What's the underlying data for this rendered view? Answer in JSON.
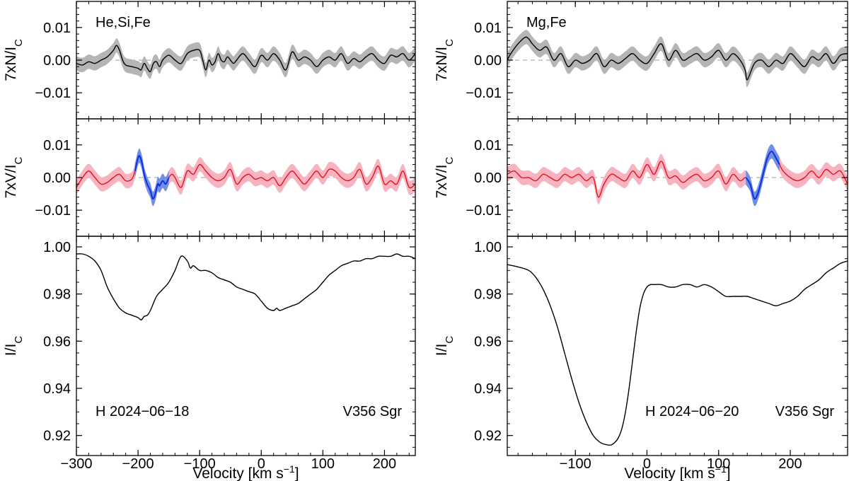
{
  "chart_data": [
    {
      "type": "line",
      "name": "left-figure",
      "x_label": "Velocity [km s",
      "x_label_sup": "−1",
      "x_label_close": "]",
      "xlim": [
        -300,
        250
      ],
      "xticks": [
        -300,
        -200,
        -100,
        0,
        100,
        200
      ],
      "xtick_labels": [
        "−300",
        "−200",
        "−100",
        "0",
        "100",
        "200"
      ],
      "panels": [
        {
          "id": "N",
          "ylabel": "7xN/I",
          "ylabel_sub": "C",
          "ylim": [
            -0.018,
            0.018
          ],
          "yticks": [
            -0.01,
            0.0,
            0.01
          ],
          "ytick_labels": [
            "−0.01",
            "0.00",
            "0.01"
          ],
          "annotation": "He,Si,Fe",
          "zero_line": true,
          "line_color": "#000000",
          "band_color": "#b5b5b5",
          "band_halfwidth": 0.0022,
          "x": [
            -300,
            -290,
            -280,
            -270,
            -260,
            -250,
            -240,
            -235,
            -230,
            -225,
            -220,
            -210,
            -200,
            -195,
            -190,
            -185,
            -180,
            -175,
            -170,
            -165,
            -160,
            -150,
            -140,
            -130,
            -120,
            -110,
            -100,
            -95,
            -90,
            -85,
            -80,
            -75,
            -70,
            -65,
            -60,
            -55,
            -50,
            -45,
            -40,
            -30,
            -20,
            -10,
            0,
            10,
            20,
            30,
            40,
            50,
            60,
            70,
            80,
            90,
            100,
            110,
            120,
            130,
            140,
            150,
            160,
            170,
            180,
            190,
            200,
            210,
            220,
            230,
            240,
            250
          ],
          "y": [
            -0.001,
            -0.0015,
            -0.0005,
            -0.001,
            0.0,
            0.001,
            0.003,
            0.0045,
            0.003,
            0.0,
            -0.0015,
            -0.002,
            -0.0025,
            -0.003,
            -0.001,
            -0.0025,
            -0.0035,
            -0.001,
            -0.0005,
            -0.002,
            0.0,
            0.0015,
            0.0,
            -0.001,
            0.002,
            0.003,
            0.003,
            0.0,
            -0.003,
            0.0,
            -0.0015,
            -0.0005,
            0.002,
            0.0,
            -0.0005,
            0.001,
            0.0,
            -0.001,
            0.0,
            0.002,
            0.0,
            -0.002,
            0.0015,
            0.0,
            0.002,
            0.0,
            -0.003,
            0.0025,
            0.0,
            0.001,
            0.0,
            -0.002,
            0.0,
            0.001,
            0.0,
            0.002,
            -0.001,
            0.0005,
            -0.0005,
            0.001,
            0.002,
            0.0,
            -0.001,
            0.0015,
            0.001,
            0.002,
            0.0,
            0.002
          ]
        },
        {
          "id": "V",
          "ylabel": "7xV/I",
          "ylabel_sub": "C",
          "ylim": [
            -0.018,
            0.018
          ],
          "yticks": [
            -0.01,
            0.0,
            0.01
          ],
          "ytick_labels": [
            "−0.01",
            "0.00",
            "0.01"
          ],
          "zero_line": true,
          "line_color": "#e8101e",
          "band_color": "#f7b4c0",
          "band_halfwidth": 0.0022,
          "highlight_color": "#1030e0",
          "highlight_band_color": "#6f90e6",
          "highlight_range": [
            -205,
            -150
          ],
          "x": [
            -300,
            -290,
            -280,
            -270,
            -260,
            -250,
            -240,
            -230,
            -220,
            -210,
            -205,
            -200,
            -197,
            -193,
            -190,
            -185,
            -180,
            -176,
            -172,
            -168,
            -165,
            -160,
            -155,
            -150,
            -145,
            -140,
            -130,
            -120,
            -110,
            -100,
            -90,
            -80,
            -70,
            -60,
            -50,
            -40,
            -30,
            -20,
            -10,
            0,
            10,
            20,
            30,
            40,
            50,
            60,
            70,
            80,
            90,
            100,
            110,
            120,
            130,
            140,
            150,
            160,
            170,
            180,
            190,
            200,
            210,
            220,
            230,
            240,
            250
          ],
          "y": [
            -0.003,
            0.0,
            0.002,
            0.0,
            -0.002,
            -0.0015,
            0.0,
            0.001,
            -0.001,
            -0.0005,
            0.002,
            0.006,
            0.0065,
            0.004,
            0.001,
            -0.002,
            -0.004,
            -0.0065,
            -0.005,
            -0.002,
            -0.0025,
            -0.001,
            -0.002,
            0.0,
            0.001,
            0.0,
            -0.003,
            0.002,
            0.001,
            0.004,
            0.002,
            0.0,
            -0.001,
            0.0,
            0.0025,
            -0.002,
            0.0,
            0.001,
            -0.0005,
            0.0,
            -0.001,
            0.0,
            -0.0025,
            0.0,
            0.002,
            0.0,
            -0.002,
            0.0,
            0.002,
            0.0,
            0.0025,
            0.002,
            0.0,
            -0.001,
            0.0,
            0.0025,
            -0.002,
            0.0,
            0.0035,
            -0.002,
            -0.001,
            -0.002,
            0.002,
            -0.003,
            -0.002
          ]
        },
        {
          "id": "I",
          "ylabel": "I/I",
          "ylabel_sub": "C",
          "ylim": [
            0.9115,
            1.0045
          ],
          "yticks": [
            0.92,
            0.94,
            0.96,
            0.98,
            1.0
          ],
          "ytick_labels": [
            "0.92",
            "0.94",
            "0.96",
            "0.98",
            "1.00"
          ],
          "annotation_left": "H 2024−06−18",
          "annotation_right": "V356 Sgr",
          "zero_line": false,
          "line_color": "#000000",
          "x": [
            -300,
            -290,
            -280,
            -270,
            -260,
            -250,
            -240,
            -230,
            -220,
            -210,
            -200,
            -195,
            -190,
            -185,
            -180,
            -170,
            -160,
            -150,
            -140,
            -130,
            -120,
            -115,
            -110,
            -100,
            -90,
            -80,
            -70,
            -60,
            -50,
            -40,
            -30,
            -20,
            -10,
            0,
            10,
            20,
            25,
            30,
            40,
            50,
            60,
            70,
            80,
            90,
            100,
            110,
            120,
            130,
            140,
            150,
            160,
            170,
            180,
            190,
            200,
            210,
            220,
            230,
            240,
            250
          ],
          "y": [
            0.997,
            0.997,
            0.996,
            0.994,
            0.99,
            0.983,
            0.978,
            0.974,
            0.972,
            0.971,
            0.97,
            0.969,
            0.9705,
            0.971,
            0.973,
            0.979,
            0.982,
            0.985,
            0.99,
            0.996,
            0.994,
            0.991,
            0.992,
            0.99,
            0.99,
            0.989,
            0.987,
            0.986,
            0.985,
            0.983,
            0.982,
            0.981,
            0.98,
            0.977,
            0.974,
            0.973,
            0.974,
            0.973,
            0.974,
            0.975,
            0.976,
            0.978,
            0.98,
            0.982,
            0.985,
            0.988,
            0.99,
            0.992,
            0.993,
            0.994,
            0.994,
            0.995,
            0.995,
            0.996,
            0.996,
            0.996,
            0.997,
            0.996,
            0.996,
            0.995
          ]
        }
      ]
    },
    {
      "type": "line",
      "name": "right-figure",
      "x_label": "Velocity [km s",
      "x_label_sup": "−1",
      "x_label_close": "]",
      "xlim": [
        -195,
        280
      ],
      "xticks": [
        -100,
        0,
        100,
        200
      ],
      "xtick_labels": [
        "−100",
        "0",
        "100",
        "200"
      ],
      "panels": [
        {
          "id": "N",
          "ylabel": "7xN/I",
          "ylabel_sub": "C",
          "ylim": [
            -0.018,
            0.018
          ],
          "yticks": [
            -0.01,
            0.0,
            0.01
          ],
          "ytick_labels": [
            "−0.01",
            "0.00",
            "0.01"
          ],
          "annotation": "Mg,Fe",
          "zero_line": true,
          "line_color": "#000000",
          "band_color": "#b5b5b5",
          "band_halfwidth": 0.0022,
          "x": [
            -195,
            -190,
            -180,
            -170,
            -165,
            -160,
            -150,
            -140,
            -130,
            -120,
            -110,
            -100,
            -90,
            -80,
            -70,
            -60,
            -50,
            -40,
            -30,
            -20,
            -10,
            0,
            10,
            20,
            30,
            40,
            50,
            60,
            70,
            80,
            90,
            100,
            110,
            120,
            130,
            137,
            140,
            150,
            160,
            170,
            180,
            190,
            200,
            210,
            220,
            230,
            240,
            250,
            260,
            270,
            280
          ],
          "y": [
            0.0,
            0.002,
            0.005,
            0.007,
            0.0065,
            0.005,
            0.003,
            0.004,
            0.0,
            0.002,
            -0.002,
            0.0,
            -0.001,
            0.0,
            0.002,
            -0.002,
            0.0,
            -0.001,
            0.0005,
            0.002,
            0.0,
            -0.001,
            0.002,
            0.005,
            0.0,
            0.003,
            0.0,
            0.001,
            0.002,
            0.0,
            0.001,
            0.003,
            0.0,
            0.002,
            0.0,
            -0.003,
            -0.006,
            -0.001,
            0.0,
            -0.002,
            0.0,
            -0.001,
            0.002,
            0.0,
            -0.002,
            0.001,
            0.0,
            0.002,
            -0.001,
            0.0015,
            0.002
          ]
        },
        {
          "id": "V",
          "ylabel": "7xV/I",
          "ylabel_sub": "C",
          "ylim": [
            -0.018,
            0.018
          ],
          "yticks": [
            -0.01,
            0.0,
            0.01
          ],
          "ytick_labels": [
            "−0.01",
            "0.00",
            "0.01"
          ],
          "zero_line": true,
          "line_color": "#e8101e",
          "band_color": "#f7b4c0",
          "band_halfwidth": 0.0022,
          "highlight_color": "#1030e0",
          "highlight_band_color": "#6f90e6",
          "highlight_range": [
            138,
            185
          ],
          "x": [
            -195,
            -185,
            -175,
            -165,
            -155,
            -145,
            -135,
            -125,
            -115,
            -105,
            -95,
            -85,
            -75,
            -68,
            -60,
            -50,
            -40,
            -30,
            -20,
            -10,
            0,
            10,
            20,
            30,
            40,
            50,
            60,
            70,
            80,
            90,
            100,
            110,
            120,
            130,
            138,
            144,
            150,
            156,
            162,
            168,
            174,
            180,
            185,
            190,
            200,
            210,
            220,
            230,
            240,
            250,
            260,
            270,
            280
          ],
          "y": [
            0.001,
            0.002,
            0.0,
            0.0,
            -0.001,
            0.001,
            0.0,
            -0.001,
            0.001,
            0.0,
            0.001,
            -0.001,
            0.0,
            -0.006,
            -0.002,
            0.001,
            0.0,
            -0.001,
            0.002,
            0.0,
            0.004,
            0.001,
            0.005,
            0.0,
            0.0005,
            -0.0015,
            0.0,
            0.001,
            -0.001,
            0.0,
            0.002,
            -0.002,
            0.001,
            -0.001,
            0.0,
            -0.002,
            -0.0065,
            -0.004,
            0.001,
            0.006,
            0.008,
            0.006,
            0.004,
            0.002,
            0.0,
            -0.001,
            0.0,
            0.002,
            0.0,
            0.0025,
            0.001,
            0.002,
            -0.002
          ]
        },
        {
          "id": "I",
          "ylabel": "I/I",
          "ylabel_sub": "C",
          "ylim": [
            0.9115,
            1.0045
          ],
          "yticks": [
            0.92,
            0.94,
            0.96,
            0.98,
            1.0
          ],
          "ytick_labels": [
            "0.92",
            "0.94",
            "0.96",
            "0.98",
            "1.00"
          ],
          "annotation_left": "H 2024−06−20",
          "annotation_right": "V356 Sgr",
          "zero_line": false,
          "line_color": "#000000",
          "x": [
            -195,
            -180,
            -165,
            -155,
            -145,
            -135,
            -125,
            -115,
            -105,
            -95,
            -85,
            -75,
            -65,
            -55,
            -50,
            -45,
            -40,
            -35,
            -30,
            -25,
            -20,
            -15,
            -10,
            -5,
            0,
            5,
            10,
            20,
            30,
            40,
            50,
            60,
            70,
            80,
            90,
            100,
            110,
            120,
            130,
            140,
            150,
            160,
            170,
            180,
            190,
            200,
            210,
            220,
            230,
            240,
            250,
            260,
            270,
            280
          ],
          "y": [
            0.9925,
            0.9915,
            0.99,
            0.987,
            0.982,
            0.975,
            0.966,
            0.955,
            0.944,
            0.934,
            0.926,
            0.92,
            0.917,
            0.916,
            0.916,
            0.917,
            0.919,
            0.923,
            0.93,
            0.94,
            0.952,
            0.964,
            0.974,
            0.98,
            0.983,
            0.984,
            0.984,
            0.984,
            0.983,
            0.983,
            0.984,
            0.984,
            0.983,
            0.984,
            0.983,
            0.981,
            0.979,
            0.979,
            0.979,
            0.979,
            0.978,
            0.977,
            0.976,
            0.975,
            0.976,
            0.977,
            0.979,
            0.982,
            0.984,
            0.986,
            0.989,
            0.991,
            0.993,
            0.994
          ]
        }
      ]
    }
  ]
}
